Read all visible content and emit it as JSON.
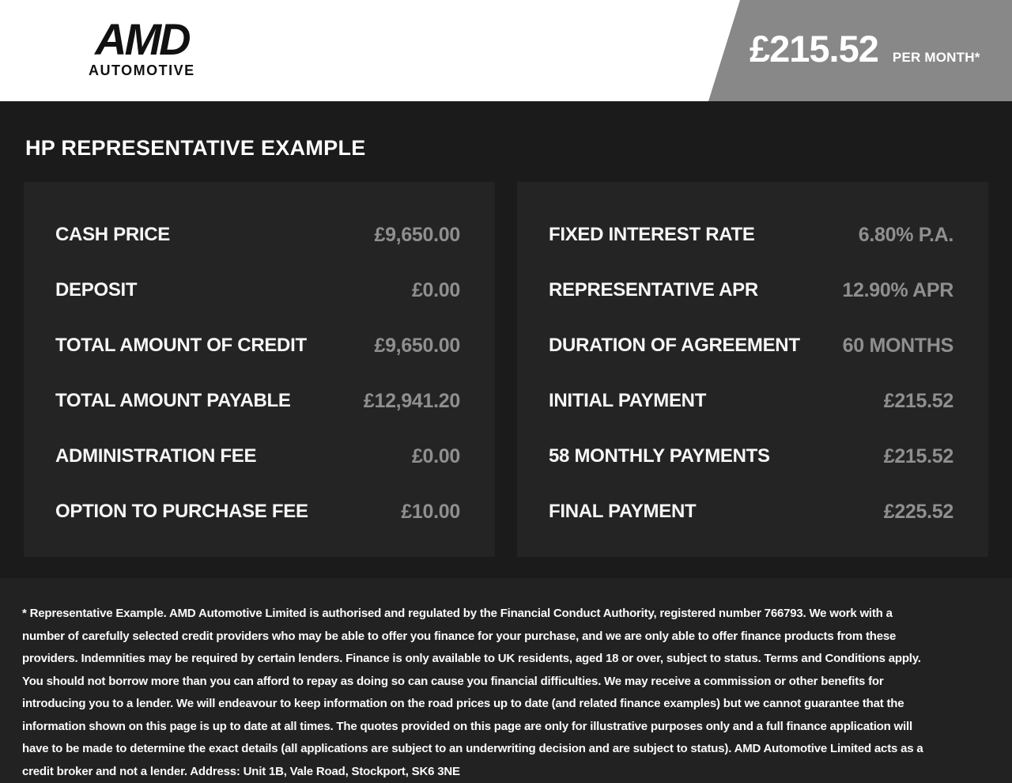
{
  "header": {
    "logo": {
      "main": "AMD",
      "sub": "AUTOMOTIVE"
    },
    "price_banner": {
      "amount": "£215.52",
      "period": "PER MONTH*",
      "bg_color": "#888888"
    }
  },
  "main": {
    "title": "HP REPRESENTATIVE EXAMPLE",
    "left_panel": {
      "rows": [
        {
          "label": "CASH PRICE",
          "value": "£9,650.00"
        },
        {
          "label": "DEPOSIT",
          "value": "£0.00"
        },
        {
          "label": "TOTAL AMOUNT OF CREDIT",
          "value": "£9,650.00"
        },
        {
          "label": "TOTAL AMOUNT PAYABLE",
          "value": "£12,941.20"
        },
        {
          "label": "ADMINISTRATION FEE",
          "value": "£0.00"
        },
        {
          "label": "OPTION TO PURCHASE FEE",
          "value": "£10.00"
        }
      ]
    },
    "right_panel": {
      "rows": [
        {
          "label": "FIXED INTEREST RATE",
          "value": "6.80% P.A."
        },
        {
          "label": "REPRESENTATIVE APR",
          "value": "12.90% APR"
        },
        {
          "label": "DURATION OF AGREEMENT",
          "value": "60 MONTHS"
        },
        {
          "label": "INITIAL PAYMENT",
          "value": "£215.52"
        },
        {
          "label": "58 MONTHLY PAYMENTS",
          "value": "£215.52"
        },
        {
          "label": "FINAL PAYMENT",
          "value": "£225.52"
        }
      ]
    }
  },
  "footer": {
    "disclaimer": "* Representative Example. AMD Automotive Limited is authorised and regulated by the Financial Conduct Authority, registered number 766793. We work with a number of carefully selected credit providers who may be able to offer you finance for your purchase, and we are only able to offer finance products from these providers. Indemnities may be required by certain lenders. Finance is only available to UK residents, aged 18 or over, subject to status. Terms and Conditions apply. You should not borrow more than you can afford to repay as doing so can cause you financial difficulties. We may receive a commission or other benefits for introducing you to a lender. We will endeavour to keep information on the road prices up to date (and related finance examples) but we cannot guarantee that the information shown on this page is up to date at all times. The quotes provided on this page are only for illustrative purposes only and a full finance application will have to be made to determine the exact details (all applications are subject to an underwriting decision and are subject to status). AMD Automotive Limited acts as a credit broker and not a lender. Address: Unit 1B, Vale Road, Stockport, SK6 3NE"
  },
  "colors": {
    "page_background": "#1b1b1b",
    "panel_background": "#242424",
    "footer_background": "#222222",
    "header_background": "#ffffff",
    "banner_gray": "#888888",
    "label_white": "#f7f7f7",
    "value_gray": "#8f8f8f"
  }
}
